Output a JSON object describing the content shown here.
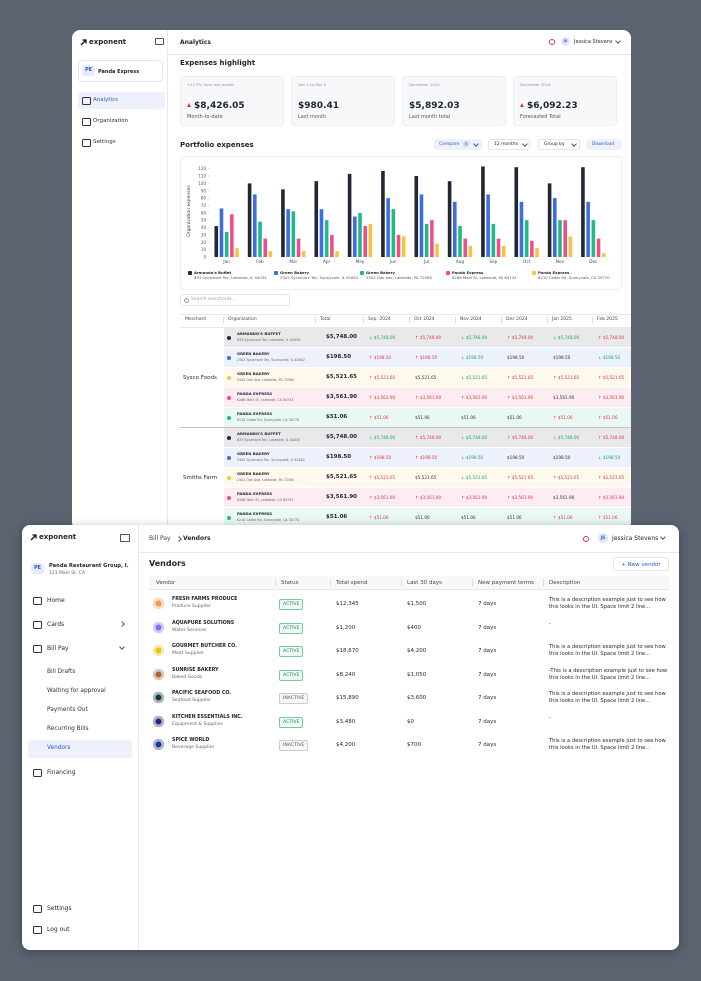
{
  "top_window": {
    "logo": "exponent",
    "org_badge": "PE",
    "org_name": "Panda Express",
    "nav": [
      "Analytics",
      "Organization",
      "Settings"
    ],
    "header_title": "Analytics",
    "user_initials": "JS",
    "user_name": "Jessica Stevens",
    "section_title": "Expenses highlight",
    "cards": [
      {
        "caption": "+12.5% from last month",
        "value": "$8,426.05",
        "label": "Month-to-date",
        "trend": "up"
      },
      {
        "caption": "Dec 1 to Dec 5",
        "value": "$980.41",
        "label": "Last month"
      },
      {
        "caption": "December 2024",
        "value": "$5,892.03",
        "label": "Last month total"
      },
      {
        "caption": "December 2024",
        "value": "$6,092.23",
        "label": "Forecasted Total",
        "trend": "up"
      }
    ],
    "portfolio_title": "Portfolio expenses",
    "controls": {
      "compare": "Compare",
      "compare_count": 5,
      "period": "12 months",
      "group_by": "Group by",
      "download": "Download"
    },
    "chart": {
      "type": "bar",
      "y_label": "Organization expenses",
      "categories": [
        "Jan",
        "Feb",
        "Mar",
        "Apr",
        "May",
        "Jun",
        "Jul",
        "Aug",
        "Sep",
        "Oct",
        "Nov",
        "Dec"
      ],
      "ylim": [
        0,
        125
      ],
      "yticks": [
        0,
        10,
        20,
        30,
        40,
        50,
        60,
        70,
        80,
        90,
        100,
        110,
        120
      ],
      "series": [
        {
          "name": "Armando's Buffet",
          "address": "833 Sycamore Tec, Lakeside, IL 44034",
          "color": "#232733",
          "values": [
            42,
            100,
            92,
            103,
            113,
            117,
            110,
            103,
            123,
            122,
            100,
            122
          ]
        },
        {
          "name": "Green Bakery",
          "address": "2502 Sycamore Tec, Sunnyvale, IL 61602",
          "color": "#3d6fe3",
          "values": [
            66,
            85,
            65,
            65,
            55,
            80,
            85,
            75,
            85,
            75,
            80,
            75
          ]
        },
        {
          "name": "Green Bakery",
          "address": "2502 Oak Ave, Lakeside, PA 72585",
          "color": "#21b88a",
          "values": [
            34,
            48,
            62,
            50,
            60,
            65,
            45,
            42,
            45,
            50,
            50,
            50
          ]
        },
        {
          "name": "Panda Express",
          "address": "8286 Main St, Lakeside, PA 84743",
          "color": "#ec4f8b",
          "values": [
            58,
            25,
            25,
            30,
            42,
            30,
            50,
            25,
            25,
            22,
            50,
            25
          ]
        },
        {
          "name": "Panda Express",
          "address": "8210 Cedar Rd, Sunnyvale, CA 30770",
          "color": "#f6c443",
          "values": [
            12,
            8,
            8,
            8,
            45,
            28,
            18,
            15,
            15,
            12,
            28,
            5
          ]
        }
      ]
    },
    "search_placeholder": "Search merchants...",
    "table": {
      "columns": [
        "Merchant",
        "Organization",
        "Total",
        "Sep. 2024",
        "Oct 2024",
        "Nov 2024",
        "Dec 2024",
        "Jan 2025",
        "Feb 2025"
      ],
      "groups": [
        {
          "merchant": "Sysco Foods",
          "rows": [
            {
              "name": "ARMANDO'S BUFFET",
              "address": "833 Sycamore Tec, Lakeside, IL 44034",
              "color": "#232733",
              "total": "$5,748.00",
              "months": [
                "↓ $5,748.00",
                "↑ $5,748.00",
                "↓ $5,748.00",
                "↑ $5,748.00",
                "↓ $5,748.00",
                "↑ $5,748.00"
              ]
            },
            {
              "name": "GREEN BAKERY",
              "address": "2502 Sycamore Tec, Sunnyvale, IL 61602",
              "color": "#3d6fe3",
              "total": "$198.50",
              "months": [
                "↑ $198.50",
                "↑ $198.50",
                "↓ $198.50",
                "$198.50",
                "$198.50",
                "↓ $198.50"
              ]
            },
            {
              "name": "GREEN BAKERY",
              "address": "2502 Oak Ave, Lakeside, PA 72585",
              "color": "#f6c443",
              "total": "$5,521.65",
              "months": [
                "↑ $5,521.65",
                "$5,521.65",
                "↓ $5,521.65",
                "↑ $5,521.65",
                "↑ $5,521.65",
                "↑ $5,521.65"
              ]
            },
            {
              "name": "PANDA EXPRESS",
              "address": "8286 Main St, Lakeside, CA 84743",
              "color": "#ec4f8b",
              "total": "$3,561.90",
              "months": [
                "↑ $3,561.90",
                "↑ $3,561.90",
                "↑ $3,561.90",
                "↑ $3,561.90",
                "$3,561.90",
                "↑ $3,561.90"
              ]
            },
            {
              "name": "PANDA EXPRESS",
              "address": "8210 Cedar Rd, Sunnyvale, CA 30770",
              "color": "#21b88a",
              "total": "$51.06",
              "months": [
                "↑ $51.06",
                "$51.06",
                "$51.06",
                "$51.06",
                "↑ $51.06",
                "↑ $51.06"
              ]
            }
          ]
        },
        {
          "merchant": "Smiths Farm",
          "rows": [
            {
              "name": "ARMANDO'S BUFFET",
              "address": "833 Sycamore Tec, Lakeside, IL 44034",
              "color": "#232733",
              "total": "$5,748.00",
              "months": [
                "↓ $5,748.00",
                "↑ $5,748.00",
                "↓ $5,748.00",
                "↑ $5,748.00",
                "↓ $5,748.00",
                "↑ $5,748.00"
              ]
            },
            {
              "name": "GREEN BAKERY",
              "address": "2502 Sycamore Tec, Sunnyvale, IL 61602",
              "color": "#3d6fe3",
              "total": "$198.50",
              "months": [
                "↑ $198.50",
                "↑ $198.50",
                "↓ $198.50",
                "$198.50",
                "$198.50",
                "↓ $198.50"
              ]
            },
            {
              "name": "GREEN BAKERY",
              "address": "2502 Oak Ave, Lakeside, PA 72585",
              "color": "#f6c443",
              "total": "$5,521.65",
              "months": [
                "↑ $5,521.65",
                "$5,521.65",
                "↓ $5,521.65",
                "↑ $5,521.65",
                "↑ $5,521.65",
                "↑ $5,521.65"
              ]
            },
            {
              "name": "PANDA EXPRESS",
              "address": "8286 Main St, Lakeside, CA 84743",
              "color": "#ec4f8b",
              "total": "$3,561.90",
              "months": [
                "↑ $3,561.90",
                "↑ $3,561.90",
                "↑ $3,561.90",
                "↑ $3,561.90",
                "$3,561.90",
                "↑ $3,561.90"
              ]
            },
            {
              "name": "PANDA EXPRESS",
              "address": "8210 Cedar Rd, Sunnyvale, CA 30770",
              "color": "#21b88a",
              "total": "$51.06",
              "months": [
                "↑ $51.06",
                "$51.06",
                "$51.06",
                "$51.06",
                "↑ $51.06",
                "↑ $51.06"
              ]
            }
          ]
        }
      ]
    }
  },
  "bottom_window": {
    "logo": "exponent",
    "org_badge": "PE",
    "org_name": "Panda Restaurant Group, I...",
    "org_address": "123 Main St, CA",
    "nav": [
      "Home",
      "Cards",
      "Bill Pay"
    ],
    "bill_pay_items": [
      "Bill Drafts",
      "Waiting for approval",
      "Payments Out",
      "Recurring Bills",
      "Vendors"
    ],
    "nav_after": "Financing",
    "footer_nav": [
      "Settings",
      "Log out"
    ],
    "breadcrumb": [
      "Bill Pay",
      "Vendors"
    ],
    "user_initials": "JS",
    "user_name": "Jessica Stevens",
    "title": "Vendors",
    "new_button": "+ New vendor",
    "table": {
      "columns": [
        "Vendor",
        "Status",
        "Total spend",
        "Last 30 days",
        "New payment terms",
        "Description"
      ],
      "rows": [
        {
          "name": "FRESH FARMS PRODUCE",
          "type": "Produce Supplier",
          "icon_color": "#f59a4a",
          "status": "ACTIVE",
          "total": "$12,345",
          "last30": "$1,500",
          "terms": "7 days",
          "description": "This is a description example just to see how this looks in the UI. Space limit 2 line..."
        },
        {
          "name": "AQUAPURE SOLUTIONS",
          "type": "Water Services",
          "icon_color": "#8b6cf0",
          "status": "ACTIVE",
          "total": "$1,200",
          "last30": "$400",
          "terms": "7 days",
          "description": "-"
        },
        {
          "name": "GOURMET BUTCHER CO.",
          "type": "Meat Supplier",
          "icon_color": "#e8c21e",
          "status": "ACTIVE",
          "total": "$18,670",
          "last30": "$4,200",
          "terms": "7 days",
          "description": "This is a description example just to see how this looks in the UI. Space limit 2 line..."
        },
        {
          "name": "SUNRISE BAKERY",
          "type": "Baked Goods",
          "icon_color": "#a0673a",
          "status": "ACTIVE",
          "total": "$8,240",
          "last30": "$1,050",
          "terms": "7 days",
          "description": "-This is a description example just to see how this looks in the UI. Space limit 2 line..."
        },
        {
          "name": "PACIFIC SEAFOOD CO.",
          "type": "Seafood Supplier",
          "icon_color": "#16383f",
          "status": "INACTIVE",
          "total": "$15,890",
          "last30": "$3,600",
          "terms": "7 days",
          "description": "This is a description example just to see how this looks in the UI. Space limit 2 line..."
        },
        {
          "name": "KITCHEN ESSENTIALS INC.",
          "type": "Equipment & Supplies",
          "icon_color": "#1d2a6b",
          "status": "ACTIVE",
          "total": "$3,480",
          "last30": "$0",
          "terms": "7 days",
          "description": "-"
        },
        {
          "name": "SPICE WORLD",
          "type": "Beverage Supplier",
          "icon_color": "#1b3a8a",
          "status": "INACTIVE",
          "total": "$4,200",
          "last30": "$700",
          "terms": "7 days",
          "description": "This is a description example just to see how this looks in the UI. Space limit 2 line..."
        }
      ]
    }
  }
}
